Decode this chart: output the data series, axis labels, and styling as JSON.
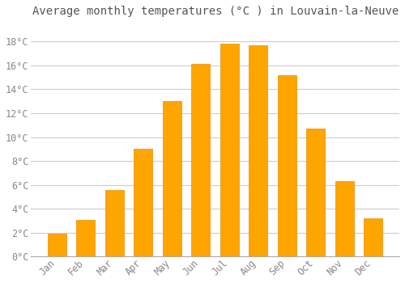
{
  "title": "Average monthly temperatures (°C ) in Louvain-la-Neuve",
  "months": [
    "Jan",
    "Feb",
    "Mar",
    "Apr",
    "May",
    "Jun",
    "Jul",
    "Aug",
    "Sep",
    "Oct",
    "Nov",
    "Dec"
  ],
  "temperatures": [
    1.9,
    3.1,
    5.6,
    9.0,
    13.0,
    16.1,
    17.8,
    17.7,
    15.2,
    10.7,
    6.3,
    3.2
  ],
  "bar_color": "#FFA500",
  "bar_edge_color": "#E89000",
  "background_color": "#FFFFFF",
  "grid_color": "#CCCCCC",
  "text_color": "#888888",
  "title_color": "#555555",
  "ylim": [
    0,
    19.5
  ],
  "yticks": [
    0,
    2,
    4,
    6,
    8,
    10,
    12,
    14,
    16,
    18
  ],
  "title_fontsize": 10,
  "tick_fontsize": 8.5,
  "bar_width": 0.65
}
